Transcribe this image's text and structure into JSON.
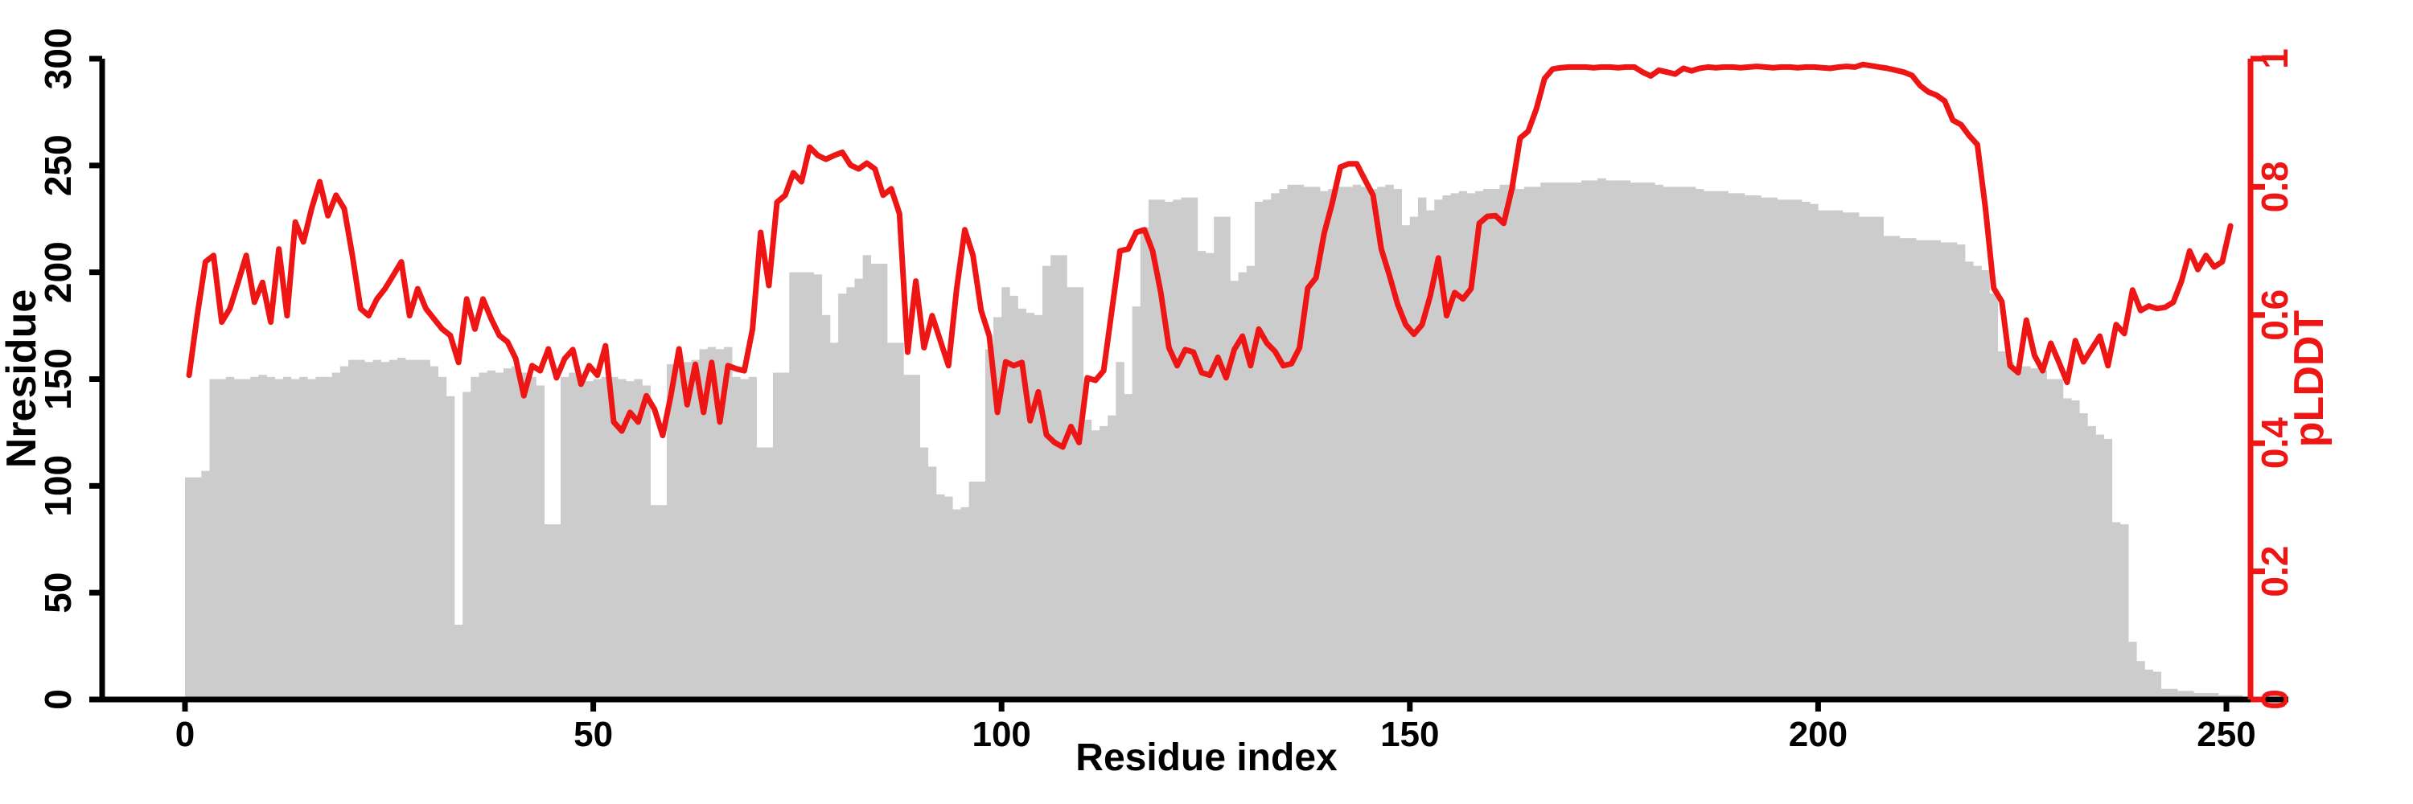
{
  "chart_data": {
    "type": "bar",
    "subtype": "dual-axis-bar-and-line",
    "title": "",
    "xlabel": "Residue index",
    "ylabel_left": "Nresidue",
    "ylabel_right": "pLDDT",
    "x_ticks": [
      "0",
      "50",
      "100",
      "150",
      "200",
      "250"
    ],
    "x_tick_values": [
      0,
      50,
      100,
      150,
      200,
      250
    ],
    "xlim": [
      0,
      256
    ],
    "ylim_left": [
      0,
      300
    ],
    "ylim_right": [
      0,
      1
    ],
    "y_ticks_left": [
      "0",
      "50",
      "100",
      "150",
      "200",
      "250",
      "300"
    ],
    "y_tick_values_left": [
      0,
      50,
      100,
      150,
      200,
      250,
      300
    ],
    "y_ticks_right": [
      "0",
      "0.2",
      "0.4",
      "0.6",
      "0.8",
      "1"
    ],
    "y_tick_values_right": [
      0,
      0.2,
      0.4,
      0.6,
      0.8,
      1
    ],
    "grid": false,
    "legend": "none",
    "colors": {
      "bar": "#cccccc",
      "line": "#ee1515",
      "axis_left": "#000000",
      "axis_right": "#ee1515",
      "background": "#ffffff"
    },
    "bar_series": {
      "name": "Nresidue",
      "axis": "left",
      "x_start": 0,
      "x_step": 1,
      "values": [
        104,
        104,
        107,
        150,
        150,
        151,
        150,
        150,
        151,
        152,
        151,
        150,
        151,
        150,
        151,
        150,
        151,
        151,
        153,
        156,
        159,
        159,
        158,
        159,
        158,
        159,
        160,
        159,
        159,
        159,
        156,
        151,
        142,
        35,
        144,
        151,
        153,
        154,
        153,
        155,
        156,
        153,
        151,
        147,
        82,
        82,
        151,
        153,
        151,
        149,
        150,
        151,
        151,
        150,
        149,
        150,
        147,
        91,
        91,
        157,
        159,
        158,
        159,
        164,
        165,
        164,
        165,
        151,
        150,
        151,
        118,
        118,
        153,
        153,
        200,
        200,
        200,
        199,
        180,
        167,
        190,
        193,
        197,
        208,
        204,
        204,
        167,
        167,
        152,
        152,
        118,
        109,
        96,
        95,
        89,
        90,
        102,
        102,
        164,
        179,
        193,
        189,
        183,
        181,
        180,
        203,
        208,
        208,
        193,
        193,
        131,
        126,
        128,
        133,
        158,
        143,
        184,
        221,
        234,
        234,
        233,
        234,
        235,
        235,
        210,
        209,
        226,
        226,
        196,
        200,
        203,
        233,
        234,
        237,
        239,
        241,
        241,
        240,
        240,
        238,
        239,
        240,
        240,
        241,
        240,
        239,
        240,
        241,
        239,
        222,
        226,
        235,
        229,
        234,
        236,
        237,
        238,
        237,
        238,
        239,
        239,
        241,
        241,
        239,
        240,
        240,
        242,
        242,
        242,
        242,
        242,
        243,
        243,
        244,
        243,
        243,
        243,
        242,
        242,
        242,
        241,
        240,
        240,
        240,
        240,
        239,
        238,
        238,
        238,
        237,
        237,
        236,
        236,
        235,
        235,
        234,
        234,
        234,
        233,
        232,
        229,
        229,
        229,
        228,
        228,
        226,
        226,
        226,
        217,
        217,
        216,
        216,
        215,
        215,
        215,
        214,
        214,
        213,
        205,
        203,
        201,
        190,
        163,
        158,
        156,
        156,
        155,
        154,
        150,
        150,
        141,
        140,
        134,
        128,
        124,
        122,
        83,
        82,
        27,
        18,
        14,
        13,
        5,
        5,
        4,
        4,
        3,
        3,
        3,
        2,
        2,
        2,
        1,
        1,
        1,
        1
      ]
    },
    "line_series": {
      "name": "pLDDT",
      "axis": "right",
      "x_start": 0,
      "x_step": 1,
      "values": [
        0.506,
        0.599,
        0.683,
        0.693,
        0.589,
        0.61,
        0.651,
        0.693,
        0.62,
        0.651,
        0.589,
        0.703,
        0.599,
        0.745,
        0.714,
        0.766,
        0.808,
        0.755,
        0.787,
        0.766,
        0.693,
        0.61,
        0.599,
        0.625,
        0.641,
        0.662,
        0.683,
        0.599,
        0.641,
        0.61,
        0.594,
        0.578,
        0.568,
        0.526,
        0.625,
        0.578,
        0.625,
        0.594,
        0.568,
        0.558,
        0.532,
        0.474,
        0.521,
        0.513,
        0.547,
        0.502,
        0.532,
        0.546,
        0.492,
        0.521,
        0.506,
        0.552,
        0.433,
        0.419,
        0.448,
        0.433,
        0.474,
        0.453,
        0.412,
        0.474,
        0.547,
        0.46,
        0.523,
        0.448,
        0.526,
        0.433,
        0.521,
        0.516,
        0.513,
        0.578,
        0.729,
        0.646,
        0.776,
        0.787,
        0.822,
        0.808,
        0.862,
        0.849,
        0.843,
        0.849,
        0.854,
        0.834,
        0.828,
        0.837,
        0.828,
        0.787,
        0.797,
        0.758,
        0.542,
        0.653,
        0.549,
        0.599,
        0.56,
        0.521,
        0.641,
        0.733,
        0.693,
        0.607,
        0.567,
        0.448,
        0.527,
        0.521,
        0.526,
        0.435,
        0.48,
        0.413,
        0.401,
        0.394,
        0.426,
        0.401,
        0.502,
        0.498,
        0.513,
        0.607,
        0.7,
        0.703,
        0.729,
        0.733,
        0.7,
        0.635,
        0.549,
        0.521,
        0.546,
        0.542,
        0.51,
        0.506,
        0.534,
        0.502,
        0.546,
        0.567,
        0.521,
        0.578,
        0.556,
        0.543,
        0.521,
        0.524,
        0.549,
        0.642,
        0.658,
        0.727,
        0.775,
        0.831,
        0.836,
        0.836,
        0.811,
        0.787,
        0.703,
        0.662,
        0.617,
        0.585,
        0.57,
        0.585,
        0.63,
        0.689,
        0.599,
        0.635,
        0.625,
        0.641,
        0.743,
        0.754,
        0.755,
        0.743,
        0.797,
        0.876,
        0.887,
        0.922,
        0.969,
        0.984,
        0.986,
        0.987,
        0.987,
        0.987,
        0.986,
        0.987,
        0.987,
        0.986,
        0.987,
        0.987,
        0.979,
        0.973,
        0.982,
        0.979,
        0.976,
        0.985,
        0.981,
        0.985,
        0.987,
        0.986,
        0.987,
        0.987,
        0.986,
        0.987,
        0.988,
        0.987,
        0.986,
        0.987,
        0.987,
        0.986,
        0.987,
        0.987,
        0.986,
        0.985,
        0.987,
        0.988,
        0.987,
        0.991,
        0.989,
        0.987,
        0.985,
        0.982,
        0.979,
        0.974,
        0.958,
        0.948,
        0.943,
        0.934,
        0.904,
        0.897,
        0.88,
        0.866,
        0.766,
        0.642,
        0.621,
        0.521,
        0.51,
        0.592,
        0.537,
        0.513,
        0.556,
        0.526,
        0.495,
        0.56,
        0.527,
        0.547,
        0.567,
        0.521,
        0.585,
        0.571,
        0.639,
        0.607,
        0.614,
        0.61,
        0.612,
        0.62,
        0.653,
        0.7,
        0.671,
        0.693,
        0.675,
        0.683,
        0.739
      ]
    }
  }
}
